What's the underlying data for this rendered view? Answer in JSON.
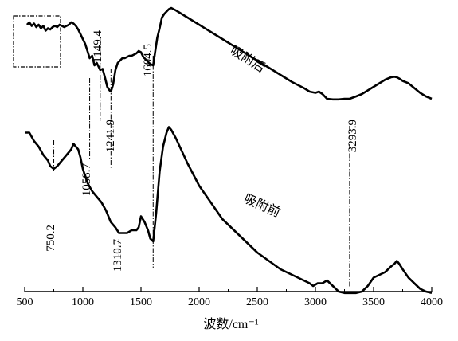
{
  "chart_data": {
    "type": "line",
    "xlabel": "波数/cm⁻¹",
    "xlim": [
      500,
      4000
    ],
    "x_ticks": [
      "500",
      "1000",
      "1500",
      "2000",
      "2500",
      "3000",
      "3500",
      "4000"
    ],
    "series": [
      {
        "name": "吸附后",
        "x": [
          520,
          540,
          560,
          580,
          600,
          620,
          640,
          660,
          680,
          700,
          720,
          740,
          760,
          780,
          800,
          820,
          840,
          860,
          880,
          900,
          920,
          940,
          960,
          980,
          1000,
          1020,
          1040,
          1058.7,
          1080,
          1100,
          1120,
          1149.4,
          1170,
          1190,
          1210,
          1230,
          1241.9,
          1260,
          1280,
          1300,
          1320,
          1340,
          1360,
          1380,
          1400,
          1420,
          1440,
          1460,
          1480,
          1500,
          1520,
          1540,
          1560,
          1580,
          1604.5,
          1620,
          1640,
          1660,
          1680,
          1700,
          1720,
          1740,
          1760,
          1800,
          1900,
          2000,
          2100,
          2200,
          2300,
          2400,
          2500,
          2600,
          2700,
          2800,
          2900,
          2950,
          3000,
          3030,
          3060,
          3100,
          3150,
          3200,
          3250,
          3293.9,
          3350,
          3400,
          3450,
          3500,
          3550,
          3600,
          3650,
          3680,
          3700,
          3720,
          3750,
          3800,
          3850,
          3900,
          3950,
          4000
        ],
        "y": [
          86,
          88,
          85,
          87,
          84,
          86,
          83,
          85,
          81,
          83,
          82,
          84,
          85,
          84,
          86,
          85,
          84,
          85,
          86,
          88,
          87,
          85,
          82,
          78,
          74,
          70,
          64,
          58,
          60,
          52,
          54,
          48,
          49,
          42,
          34,
          31,
          30,
          36,
          48,
          54,
          56,
          58,
          58,
          59,
          60,
          60,
          61,
          62,
          64,
          63,
          59,
          57,
          55,
          53,
          52,
          62,
          75,
          83,
          92,
          95,
          97,
          99,
          100,
          98,
          92,
          86,
          80,
          74,
          68,
          62,
          56,
          50,
          44,
          38,
          33,
          30,
          29,
          30,
          28,
          24,
          23.5,
          23.5,
          24,
          24,
          26,
          28,
          31,
          34,
          37,
          40,
          42,
          42.5,
          42,
          41,
          39,
          37,
          33,
          29,
          26,
          24
        ]
      },
      {
        "name": "吸附前",
        "x": [
          500,
          540,
          580,
          620,
          660,
          700,
          720,
          750.2,
          780,
          820,
          860,
          900,
          920,
          940,
          960,
          980,
          1000,
          1040,
          1080,
          1120,
          1160,
          1200,
          1240,
          1280,
          1310.7,
          1340,
          1380,
          1420,
          1460,
          1480,
          1500,
          1530,
          1560,
          1580,
          1604.5,
          1630,
          1660,
          1690,
          1720,
          1740,
          1760,
          1800,
          1900,
          2000,
          2100,
          2200,
          2300,
          2400,
          2500,
          2600,
          2700,
          2800,
          2900,
          2950,
          2980,
          3020,
          3060,
          3100,
          3150,
          3200,
          3250,
          3293.9,
          3350,
          3400,
          3450,
          3500,
          3550,
          3600,
          3650,
          3680,
          3700,
          3720,
          3750,
          3800,
          3850,
          3900,
          3950,
          4000
        ],
        "y": [
          51,
          51,
          48,
          46,
          43,
          41,
          39,
          38,
          39,
          41,
          43,
          45,
          47,
          46,
          45,
          42,
          38,
          33,
          30,
          28,
          26,
          23,
          19,
          17,
          15,
          15,
          15,
          16,
          16,
          17,
          21,
          19,
          16,
          13,
          12,
          22,
          37,
          46,
          51,
          53,
          52,
          49,
          40,
          32,
          26,
          20,
          16,
          12,
          8,
          5,
          2,
          0,
          -2,
          -3,
          -4,
          -3,
          -3,
          -2,
          -4,
          -6,
          -6.5,
          -6.5,
          -6.5,
          -6,
          -4,
          -1,
          0,
          1,
          3,
          4,
          5,
          4,
          2,
          -1,
          -3,
          -5,
          -6,
          -6.5
        ]
      }
    ],
    "annotations": [
      {
        "text": "1149.4",
        "x": 1149.4
      },
      {
        "text": "1604.5",
        "x": 1604.5
      },
      {
        "text": "1058.7",
        "x": 1058.7
      },
      {
        "text": "1241.9",
        "x": 1241.9
      },
      {
        "text": "3293.9",
        "x": 3293.9
      },
      {
        "text": "750.2",
        "x": 750.2
      },
      {
        "text": "1310.7",
        "x": 1310.7
      }
    ],
    "curve_labels": [
      "吸附后",
      "吸附前"
    ],
    "grid": false,
    "legend": "none",
    "colors": {
      "line": "#000000",
      "axis": "#000000",
      "guide": "#000000"
    }
  }
}
